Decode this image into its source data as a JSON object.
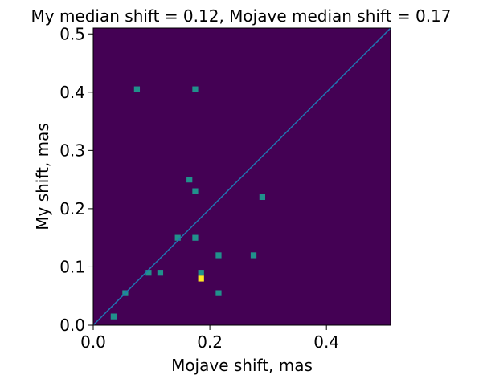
{
  "chart_data": {
    "type": "heatmap",
    "title": "My median shift = 0.12, Mojave median shift = 0.17",
    "xlabel": "Mojave shift, mas",
    "ylabel": "My shift, mas",
    "xlim": [
      0,
      0.51
    ],
    "ylim": [
      0,
      0.51
    ],
    "xticks": [
      0.0,
      0.2,
      0.4
    ],
    "xtick_labels": [
      "0.0",
      "0.2",
      "0.4"
    ],
    "yticks": [
      0.0,
      0.1,
      0.2,
      0.3,
      0.4,
      0.5
    ],
    "ytick_labels": [
      "0.0",
      "0.1",
      "0.2",
      "0.3",
      "0.4",
      "0.5"
    ],
    "bins": 51,
    "bin_width": 0.01,
    "colormap": "viridis",
    "background_color": "#440154",
    "reference_line": {
      "from": [
        0,
        0
      ],
      "to": [
        0.51,
        0.51
      ],
      "label": "y = x",
      "color": "#1f77b4"
    },
    "cells": [
      {
        "x": 0.075,
        "y": 0.405,
        "count": 1
      },
      {
        "x": 0.175,
        "y": 0.405,
        "count": 1
      },
      {
        "x": 0.165,
        "y": 0.25,
        "count": 1
      },
      {
        "x": 0.175,
        "y": 0.23,
        "count": 1
      },
      {
        "x": 0.29,
        "y": 0.22,
        "count": 1
      },
      {
        "x": 0.145,
        "y": 0.15,
        "count": 1
      },
      {
        "x": 0.175,
        "y": 0.15,
        "count": 1
      },
      {
        "x": 0.215,
        "y": 0.12,
        "count": 1
      },
      {
        "x": 0.275,
        "y": 0.12,
        "count": 1
      },
      {
        "x": 0.095,
        "y": 0.09,
        "count": 1
      },
      {
        "x": 0.115,
        "y": 0.09,
        "count": 1
      },
      {
        "x": 0.185,
        "y": 0.09,
        "count": 1
      },
      {
        "x": 0.185,
        "y": 0.08,
        "count": 2
      },
      {
        "x": 0.055,
        "y": 0.055,
        "count": 1
      },
      {
        "x": 0.215,
        "y": 0.055,
        "count": 1
      },
      {
        "x": 0.035,
        "y": 0.015,
        "count": 1
      }
    ],
    "count_colors": {
      "1": "#21918c",
      "2": "#fde725"
    }
  }
}
